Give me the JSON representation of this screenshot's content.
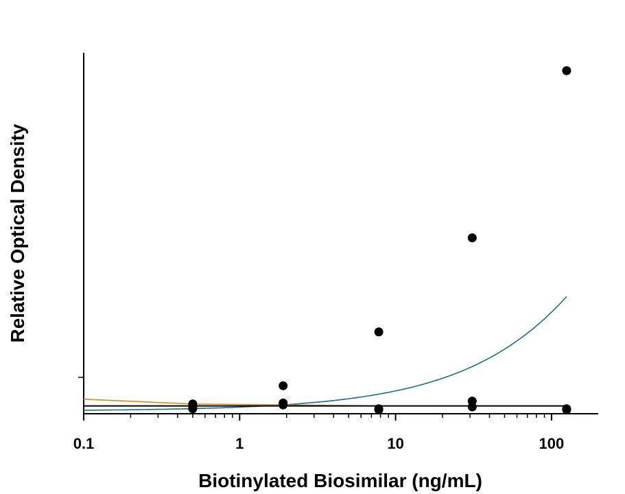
{
  "chart_data": {
    "type": "scatter",
    "title": "",
    "xlabel": "Biotinylated Biosimilar (ng/mL)",
    "ylabel": "Relative Optical Density",
    "x_scale": "log",
    "xlim": [
      0.1,
      200
    ],
    "ylim": [
      0,
      3.5
    ],
    "x_ticks": [
      "0.1",
      "1",
      "10",
      "100"
    ],
    "grid": false,
    "legend": "none",
    "series": [
      {
        "color": "#17707c",
        "x": [
          0.5,
          1.9,
          7.8,
          31,
          125
        ],
        "y": [
          0.03,
          0.22,
          0.78,
          1.76,
          3.5
        ],
        "fit": {
          "bottom": 0.0,
          "top": 13.5,
          "ec50": 3200,
          "hill": 0.72
        }
      },
      {
        "color": "#d9891a",
        "x": [
          0.5,
          1.9,
          7.8,
          31,
          125
        ],
        "y": [
          -0.02,
          0.02,
          -0.03,
          0.0,
          -0.03
        ],
        "fit": {
          "points_x": [
            0.1,
            0.5,
            1.9,
            7.8
          ],
          "points_y": [
            0.08,
            0.03,
            0.02,
            0.01
          ]
        }
      },
      {
        "color": "#000000",
        "x": [
          0.5,
          1.9,
          7.8,
          31,
          125
        ],
        "y": [
          0.0,
          0.04,
          -0.02,
          0.06,
          -0.02
        ],
        "fit": {
          "level": 0.01
        }
      }
    ]
  }
}
